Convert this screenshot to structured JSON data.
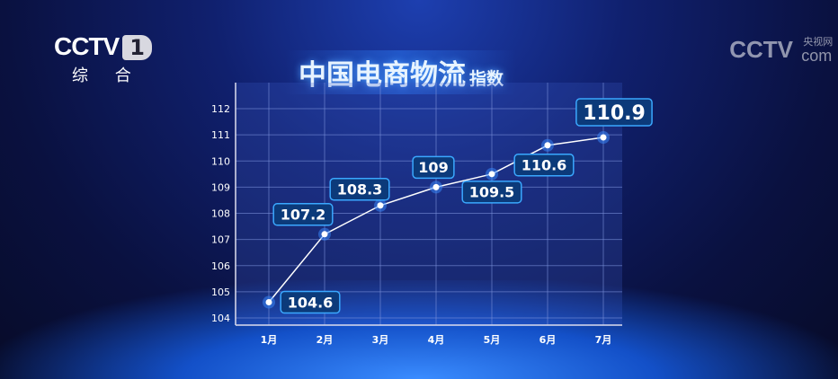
{
  "channel": {
    "logo": "CCTV",
    "number": "1",
    "name": "综 合"
  },
  "watermark": {
    "logo": "CCTV",
    "site": "央视网",
    "domain": "com"
  },
  "chart_data": {
    "type": "line",
    "title": "中国电商物流",
    "title_suffix": "指数",
    "categories": [
      "1月",
      "2月",
      "3月",
      "4月",
      "5月",
      "6月",
      "7月"
    ],
    "values": [
      104.6,
      107.2,
      108.3,
      109,
      109.5,
      110.6,
      110.9
    ],
    "data_labels": [
      "104.6",
      "107.2",
      "108.3",
      "109",
      "109.5",
      "110.6",
      "110.9"
    ],
    "yticks": [
      "104",
      "105",
      "106",
      "107",
      "108",
      "109",
      "110",
      "111",
      "112"
    ],
    "ylim": [
      104,
      112
    ],
    "grid": true,
    "colors": {
      "line": "#ffffff",
      "label_border": "#3aa8ff",
      "label_bg": "#0c3a7a",
      "grid": "#7a90d8"
    }
  }
}
